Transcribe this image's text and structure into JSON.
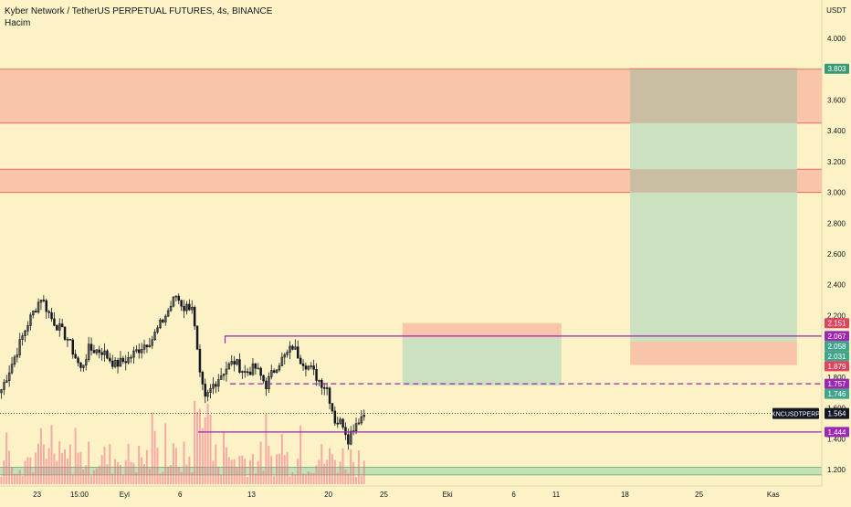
{
  "header": {
    "title": "Kyber Network / TetherUS PERPETUAL FUTURES, 4s, BINANCE",
    "indicator": "Hacim"
  },
  "colors": {
    "background": "#fdf2c5",
    "axis_bg": "#fdf2c5",
    "zone_red_fill": "#f9c5a9",
    "zone_red_line": "#ef6a5a",
    "profit_fill": "#c8dfbf",
    "loss_fill": "#f8c2a8",
    "overlap_fill": "#c9bda2",
    "level_line": "#9c27b0",
    "candle": "#131722",
    "volume_bar": "#f06f8b",
    "volume_zone_fill": "#c5e1b6",
    "label_green": "#3a9a77",
    "label_red": "#e0435e",
    "label_purple": "#9c27b0",
    "label_teal": "#40a48a",
    "label_black": "#131722"
  },
  "chart_data": {
    "type": "candlestick",
    "symbol": "KNCUSDTPERP",
    "y_axis_unit": "USDT",
    "y_ticks": [
      "1.200",
      "1.400",
      "1.600",
      "1.800",
      "2.000",
      "2.200",
      "2.400",
      "2.600",
      "2.800",
      "3.000",
      "3.200",
      "3.400",
      "3.600",
      "3.800",
      "4.000"
    ],
    "y_tick_values": [
      1.2,
      1.4,
      1.6,
      1.8,
      2.0,
      2.2,
      2.4,
      2.6,
      2.8,
      3.0,
      3.2,
      3.4,
      3.6,
      3.8,
      4.0
    ],
    "x_ticks": [
      "23",
      "15:00",
      "Eyl",
      "6",
      "13",
      "20",
      "25",
      "Eki",
      "6",
      "11",
      "18",
      "25",
      "Kas"
    ],
    "x_tick_bars": [
      14,
      30,
      47,
      68,
      95,
      124,
      145,
      169,
      194,
      210,
      236,
      264,
      292
    ],
    "current_price": 1.564,
    "price_labels": [
      {
        "value": "3.803",
        "price": 3.803,
        "style": "green"
      },
      {
        "value": "2.151",
        "price": 2.151,
        "style": "red"
      },
      {
        "value": "2.067",
        "price": 2.067,
        "style": "purple"
      },
      {
        "value": "2.058",
        "price": 2.058,
        "style": "teal"
      },
      {
        "value": "2.031",
        "price": 2.031,
        "style": "teal"
      },
      {
        "value": "1.879",
        "price": 1.879,
        "style": "red"
      },
      {
        "value": "1.757",
        "price": 1.757,
        "style": "purple"
      },
      {
        "value": "1.746",
        "price": 1.746,
        "style": "teal"
      },
      {
        "value": "1.444",
        "price": 1.444,
        "style": "purple"
      }
    ],
    "current_label": {
      "symbol": "KNCUSDTPERP",
      "value": "1.564"
    },
    "zones": [
      {
        "kind": "resistance",
        "top": 3.8,
        "bottom": 3.45
      },
      {
        "kind": "resistance",
        "top": 3.15,
        "bottom": 3.0
      }
    ],
    "levels": [
      {
        "price": 2.067,
        "from_bar": 85,
        "dashed": false
      },
      {
        "price": 1.757,
        "from_bar": 87,
        "dashed": true
      },
      {
        "price": 1.444,
        "from_bar": 75,
        "dashed": false
      }
    ],
    "positions": [
      {
        "from_bar": 152,
        "to_bar": 212,
        "entry": 2.058,
        "stop": 2.151,
        "target": 1.746
      },
      {
        "from_bar": 238,
        "to_bar": 301,
        "entry": 2.031,
        "stop": 1.879,
        "target": 3.803
      }
    ],
    "volume_zone": {
      "top": 1.215,
      "bottom": 1.165
    },
    "candles": {
      "start_bar": 0,
      "close_path": [
        [
          0,
          1.72
        ],
        [
          5,
          1.93
        ],
        [
          10,
          2.15
        ],
        [
          15,
          2.32
        ],
        [
          19,
          2.18
        ],
        [
          25,
          2.05
        ],
        [
          30,
          1.85
        ],
        [
          33,
          1.98
        ],
        [
          38,
          1.97
        ],
        [
          43,
          1.88
        ],
        [
          48,
          1.92
        ],
        [
          53,
          2.0
        ],
        [
          57,
          2.05
        ],
        [
          62,
          2.2
        ],
        [
          66,
          2.33
        ],
        [
          69,
          2.25
        ],
        [
          72,
          2.27
        ],
        [
          75,
          1.8
        ],
        [
          77,
          1.65
        ],
        [
          80,
          1.75
        ],
        [
          83,
          1.82
        ],
        [
          85,
          1.86
        ],
        [
          88,
          1.9
        ],
        [
          92,
          1.83
        ],
        [
          96,
          1.86
        ],
        [
          100,
          1.75
        ],
        [
          104,
          1.88
        ],
        [
          108,
          1.95
        ],
        [
          110,
          2.0
        ],
        [
          113,
          1.92
        ],
        [
          117,
          1.85
        ],
        [
          120,
          1.78
        ],
        [
          123,
          1.73
        ],
        [
          126,
          1.52
        ],
        [
          129,
          1.5
        ],
        [
          131,
          1.4
        ],
        [
          133,
          1.48
        ],
        [
          135,
          1.53
        ],
        [
          137,
          1.56
        ]
      ],
      "count": 138
    }
  }
}
